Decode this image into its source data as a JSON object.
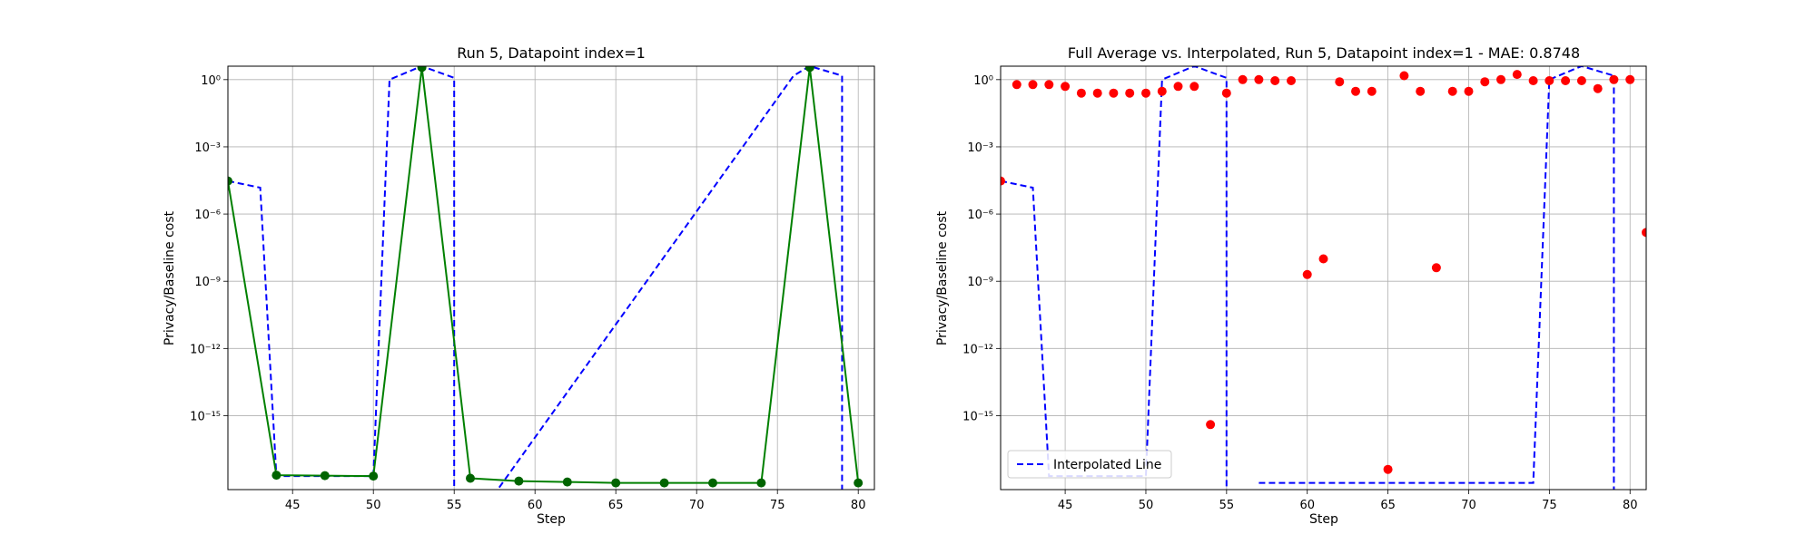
{
  "figure": {
    "background": "#ffffff",
    "grid_color": "#b0b0b0"
  },
  "chart_data": [
    {
      "type": "line",
      "title": "Run 5, Datapoint index=1",
      "xlabel": "Step",
      "ylabel": "Privacy/Baseline cost",
      "xlim": [
        41,
        81
      ],
      "yscale": "log",
      "ylim_log10": [
        -18.3,
        0.6
      ],
      "xticks": [
        45,
        50,
        55,
        60,
        65,
        70,
        75,
        80
      ],
      "yticks_log10": [
        0,
        -3,
        -6,
        -9,
        -12,
        -15
      ],
      "grid": true,
      "legend": null,
      "series": [
        {
          "style": "dashed",
          "color": "#0000ff",
          "marker": "none",
          "points": [
            [
              41,
              3e-05
            ],
            [
              43,
              1.5e-05
            ],
            [
              44,
              2e-18
            ],
            [
              50,
              2e-18
            ],
            [
              51,
              1
            ],
            [
              53,
              4
            ],
            [
              55,
              1.2
            ],
            [
              55,
              1e-19
            ],
            [
              57,
              1e-19
            ],
            [
              76,
              1.5
            ],
            [
              77,
              4
            ],
            [
              79,
              1.5
            ],
            [
              79,
              1e-19
            ],
            [
              80,
              1e-19
            ]
          ]
        },
        {
          "style": "solid",
          "color": "#008000",
          "marker": "o",
          "marker_color": "#006400",
          "points": [
            [
              41,
              3e-05
            ],
            [
              44,
              2.2e-18
            ],
            [
              47,
              2.1e-18
            ],
            [
              50,
              2e-18
            ],
            [
              53,
              3.5
            ],
            [
              56,
              1.6e-18
            ],
            [
              59,
              1.2e-18
            ],
            [
              62,
              1.1e-18
            ],
            [
              65,
              1e-18
            ],
            [
              68,
              1e-18
            ],
            [
              71,
              1e-18
            ],
            [
              74,
              1e-18
            ],
            [
              77,
              3.5
            ],
            [
              80,
              1e-18
            ]
          ]
        }
      ]
    },
    {
      "type": "scatter",
      "title": "Full Average vs. Interpolated, Run 5, Datapoint index=1 - MAE: 0.8748",
      "xlabel": "Step",
      "ylabel": "Privacy/Baseline cost",
      "xlim": [
        41,
        81
      ],
      "yscale": "log",
      "ylim_log10": [
        -18.3,
        0.6
      ],
      "xticks": [
        45,
        50,
        55,
        60,
        65,
        70,
        75,
        80
      ],
      "yticks_log10": [
        0,
        -3,
        -6,
        -9,
        -12,
        -15
      ],
      "grid": true,
      "legend": {
        "position": "lower-left",
        "entries": [
          "Interpolated Line"
        ]
      },
      "series": [
        {
          "name": "Interpolated Line",
          "style": "dashed",
          "color": "#0000ff",
          "marker": "none",
          "points": [
            [
              41,
              3e-05
            ],
            [
              43,
              1.5e-05
            ],
            [
              44,
              2e-18
            ],
            [
              50,
              2e-18
            ],
            [
              51,
              1
            ],
            [
              53,
              4
            ],
            [
              55,
              1.2
            ],
            [
              55,
              1e-19
            ]
          ],
          "points_2": [
            [
              57,
              1e-18
            ],
            [
              74,
              1e-18
            ],
            [
              75,
              1
            ],
            [
              77,
              4
            ],
            [
              79,
              1.5
            ],
            [
              79,
              1e-19
            ]
          ]
        },
        {
          "style": "none",
          "color": "#ff0000",
          "marker": "o",
          "points": [
            [
              41,
              3e-05
            ],
            [
              42,
              0.6
            ],
            [
              43,
              0.6
            ],
            [
              44,
              0.6
            ],
            [
              45,
              0.5
            ],
            [
              46,
              0.25
            ],
            [
              47,
              0.25
            ],
            [
              48,
              0.25
            ],
            [
              49,
              0.25
            ],
            [
              50,
              0.25
            ],
            [
              51,
              0.3
            ],
            [
              52,
              0.5
            ],
            [
              53,
              0.5
            ],
            [
              54,
              4e-16
            ],
            [
              55,
              0.25
            ],
            [
              56,
              1
            ],
            [
              57,
              1
            ],
            [
              58,
              0.9
            ],
            [
              59,
              0.9
            ],
            [
              60,
              2e-09
            ],
            [
              61,
              1e-08
            ],
            [
              62,
              0.8
            ],
            [
              63,
              0.3
            ],
            [
              64,
              0.3
            ],
            [
              65,
              4e-18
            ],
            [
              66,
              1.5
            ],
            [
              67,
              0.3
            ],
            [
              68,
              4e-09
            ],
            [
              69,
              0.3
            ],
            [
              70,
              0.3
            ],
            [
              71,
              0.8
            ],
            [
              72,
              1
            ],
            [
              73,
              1.7
            ],
            [
              74,
              0.9
            ],
            [
              75,
              0.9
            ],
            [
              76,
              0.9
            ],
            [
              77,
              0.9
            ],
            [
              78,
              0.4
            ],
            [
              79,
              1
            ],
            [
              80,
              1
            ],
            [
              81,
              1.5e-07
            ]
          ]
        }
      ]
    }
  ]
}
